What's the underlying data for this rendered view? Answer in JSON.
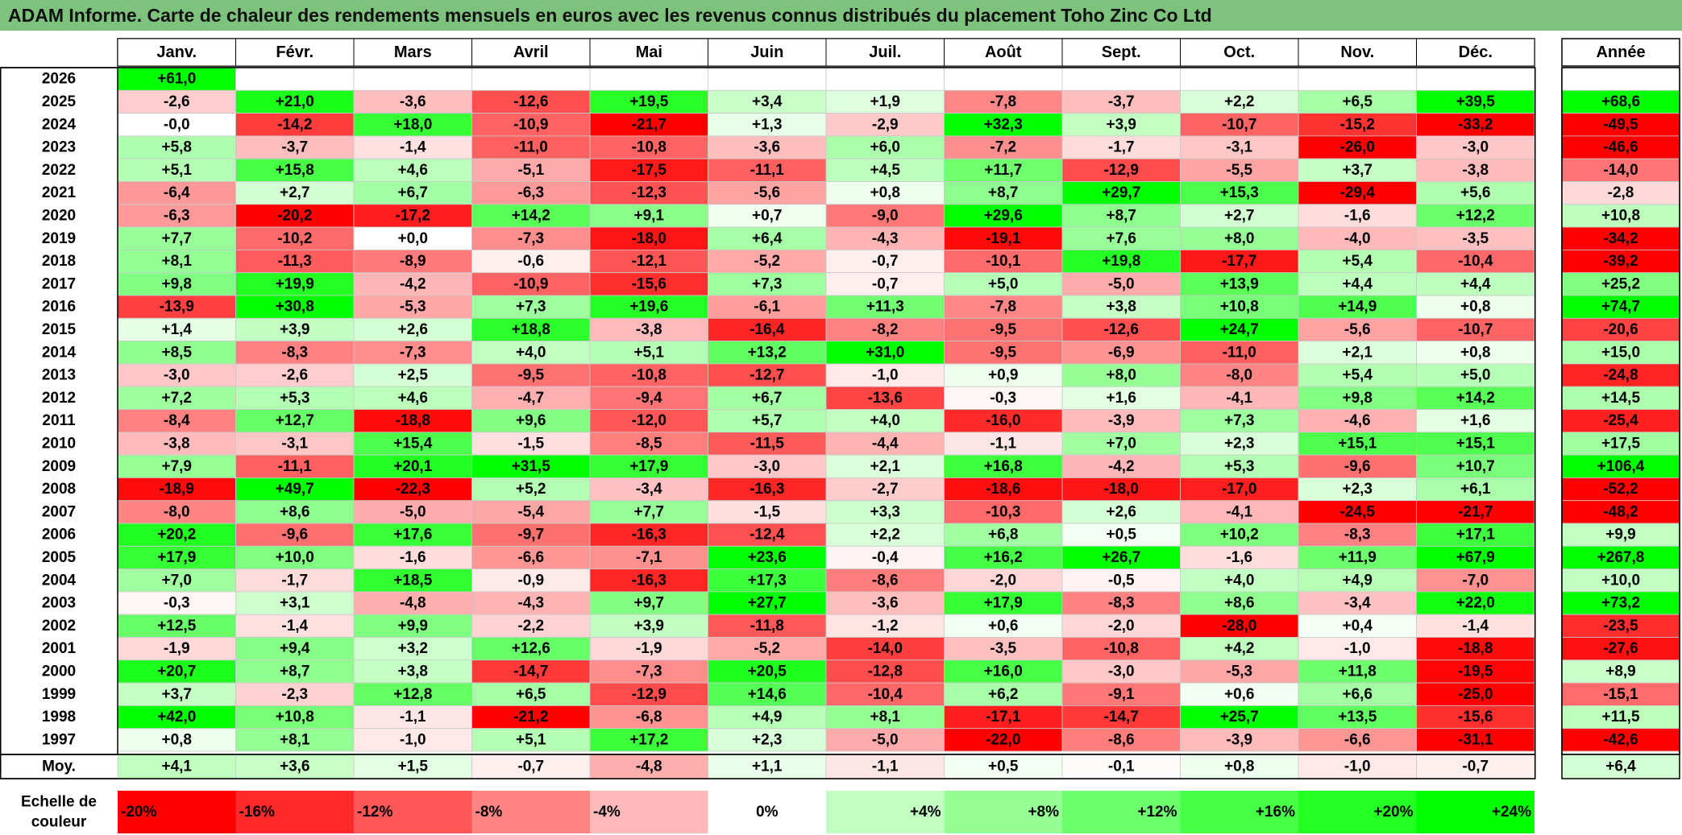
{
  "title": "ADAM Informe. Carte de chaleur des rendements mensuels en euros avec les revenus connus distribués du placement Toho Zinc Co Ltd",
  "chart_data": {
    "type": "heatmap",
    "months": [
      "Janv.",
      "Févr.",
      "Mars",
      "Avril",
      "Mai",
      "Juin",
      "Juil.",
      "Août",
      "Sept.",
      "Oct.",
      "Nov.",
      "Déc."
    ],
    "year_header": "Année",
    "rows": [
      {
        "year": "2026",
        "values": [
          "+61,0",
          null,
          null,
          null,
          null,
          null,
          null,
          null,
          null,
          null,
          null,
          null
        ],
        "total": null
      },
      {
        "year": "2025",
        "values": [
          "-2,6",
          "+21,0",
          "-3,6",
          "-12,6",
          "+19,5",
          "+3,4",
          "+1,9",
          "-7,8",
          "-3,7",
          "+2,2",
          "+6,5",
          "+39,5"
        ],
        "total": "+68,6"
      },
      {
        "year": "2024",
        "values": [
          "-0,0",
          "-14,2",
          "+18,0",
          "-10,9",
          "-21,7",
          "+1,3",
          "-2,9",
          "+32,3",
          "+3,9",
          "-10,7",
          "-15,2",
          "-33,2"
        ],
        "total": "-49,5"
      },
      {
        "year": "2023",
        "values": [
          "+5,8",
          "-3,7",
          "-1,4",
          "-11,0",
          "-10,8",
          "-3,6",
          "+6,0",
          "-7,2",
          "-1,7",
          "-3,1",
          "-26,0",
          "-3,0"
        ],
        "total": "-46,6"
      },
      {
        "year": "2022",
        "values": [
          "+5,1",
          "+15,8",
          "+4,6",
          "-5,1",
          "-17,5",
          "-11,1",
          "+4,5",
          "+11,7",
          "-12,9",
          "-5,5",
          "+3,7",
          "-3,8"
        ],
        "total": "-14,0"
      },
      {
        "year": "2021",
        "values": [
          "-6,4",
          "+2,7",
          "+6,7",
          "-6,3",
          "-12,3",
          "-5,6",
          "+0,8",
          "+8,7",
          "+29,7",
          "+15,3",
          "-29,4",
          "+5,6"
        ],
        "total": "-2,8"
      },
      {
        "year": "2020",
        "values": [
          "-6,3",
          "-20,2",
          "-17,2",
          "+14,2",
          "+9,1",
          "+0,7",
          "-9,0",
          "+29,6",
          "+8,7",
          "+2,7",
          "-1,6",
          "+12,2"
        ],
        "total": "+10,8"
      },
      {
        "year": "2019",
        "values": [
          "+7,7",
          "-10,2",
          "+0,0",
          "-7,3",
          "-18,0",
          "+6,4",
          "-4,3",
          "-19,1",
          "+7,6",
          "+8,0",
          "-4,0",
          "-3,5"
        ],
        "total": "-34,2"
      },
      {
        "year": "2018",
        "values": [
          "+8,1",
          "-11,3",
          "-8,9",
          "-0,6",
          "-12,1",
          "-5,2",
          "-0,7",
          "-10,1",
          "+19,8",
          "-17,7",
          "+5,4",
          "-10,4"
        ],
        "total": "-39,2"
      },
      {
        "year": "2017",
        "values": [
          "+9,8",
          "+19,9",
          "-4,2",
          "-10,9",
          "-15,6",
          "+7,3",
          "-0,7",
          "+5,0",
          "-5,0",
          "+13,9",
          "+4,4",
          "+4,4"
        ],
        "total": "+25,2"
      },
      {
        "year": "2016",
        "values": [
          "-13,9",
          "+30,8",
          "-5,3",
          "+7,3",
          "+19,6",
          "-6,1",
          "+11,3",
          "-7,8",
          "+3,8",
          "+10,8",
          "+14,9",
          "+0,8"
        ],
        "total": "+74,7"
      },
      {
        "year": "2015",
        "values": [
          "+1,4",
          "+3,9",
          "+2,6",
          "+18,8",
          "-3,8",
          "-16,4",
          "-8,2",
          "-9,5",
          "-12,6",
          "+24,7",
          "-5,6",
          "-10,7"
        ],
        "total": "-20,6"
      },
      {
        "year": "2014",
        "values": [
          "+8,5",
          "-8,3",
          "-7,3",
          "+4,0",
          "+5,1",
          "+13,2",
          "+31,0",
          "-9,5",
          "-6,9",
          "-11,0",
          "+2,1",
          "+0,8"
        ],
        "total": "+15,0"
      },
      {
        "year": "2013",
        "values": [
          "-3,0",
          "-2,6",
          "+2,5",
          "-9,5",
          "-10,8",
          "-12,7",
          "-1,0",
          "+0,9",
          "+8,0",
          "-8,0",
          "+5,4",
          "+5,0"
        ],
        "total": "-24,8"
      },
      {
        "year": "2012",
        "values": [
          "+7,2",
          "+5,3",
          "+4,6",
          "-4,7",
          "-9,4",
          "+6,7",
          "-13,6",
          "-0,3",
          "+1,6",
          "-4,1",
          "+9,8",
          "+14,2"
        ],
        "total": "+14,5"
      },
      {
        "year": "2011",
        "values": [
          "-8,4",
          "+12,7",
          "-18,8",
          "+9,6",
          "-12,0",
          "+5,7",
          "+4,0",
          "-16,0",
          "-3,9",
          "+7,3",
          "-4,6",
          "+1,6"
        ],
        "total": "-25,4"
      },
      {
        "year": "2010",
        "values": [
          "-3,8",
          "-3,1",
          "+15,4",
          "-1,5",
          "-8,5",
          "-11,5",
          "-4,4",
          "-1,1",
          "+7,0",
          "+2,3",
          "+15,1",
          "+15,1"
        ],
        "total": "+17,5"
      },
      {
        "year": "2009",
        "values": [
          "+7,9",
          "-11,1",
          "+20,1",
          "+31,5",
          "+17,9",
          "-3,0",
          "+2,1",
          "+16,8",
          "-4,2",
          "+5,3",
          "-9,6",
          "+10,7"
        ],
        "total": "+106,4"
      },
      {
        "year": "2008",
        "values": [
          "-18,9",
          "+49,7",
          "-22,3",
          "+5,2",
          "-3,4",
          "-16,3",
          "-2,7",
          "-18,6",
          "-18,0",
          "-17,0",
          "+2,3",
          "+6,1"
        ],
        "total": "-52,2"
      },
      {
        "year": "2007",
        "values": [
          "-8,0",
          "+8,6",
          "-5,0",
          "-5,4",
          "+7,7",
          "-1,5",
          "+3,3",
          "-10,3",
          "+2,6",
          "-4,1",
          "-24,5",
          "-21,7"
        ],
        "total": "-48,2"
      },
      {
        "year": "2006",
        "values": [
          "+20,2",
          "-9,6",
          "+17,6",
          "-9,7",
          "-16,3",
          "-12,4",
          "+2,2",
          "+6,8",
          "+0,5",
          "+10,2",
          "-8,3",
          "+17,1"
        ],
        "total": "+9,9"
      },
      {
        "year": "2005",
        "values": [
          "+17,9",
          "+10,0",
          "-1,6",
          "-6,6",
          "-7,1",
          "+23,6",
          "-0,4",
          "+16,2",
          "+26,7",
          "-1,6",
          "+11,9",
          "+67,9"
        ],
        "total": "+267,8"
      },
      {
        "year": "2004",
        "values": [
          "+7,0",
          "-1,7",
          "+18,5",
          "-0,9",
          "-16,3",
          "+17,3",
          "-8,6",
          "-2,0",
          "-0,5",
          "+4,0",
          "+4,9",
          "-7,0"
        ],
        "total": "+10,0"
      },
      {
        "year": "2003",
        "values": [
          "-0,3",
          "+3,1",
          "-4,8",
          "-4,3",
          "+9,7",
          "+27,7",
          "-3,6",
          "+17,9",
          "-8,3",
          "+8,6",
          "-3,4",
          "+22,0"
        ],
        "total": "+73,2"
      },
      {
        "year": "2002",
        "values": [
          "+12,5",
          "-1,4",
          "+9,9",
          "-2,2",
          "+3,9",
          "-11,8",
          "-1,2",
          "+0,6",
          "-2,0",
          "-28,0",
          "+0,4",
          "-1,4"
        ],
        "total": "-23,5"
      },
      {
        "year": "2001",
        "values": [
          "-1,9",
          "+9,4",
          "+3,2",
          "+12,6",
          "-1,9",
          "-5,2",
          "-14,0",
          "-3,5",
          "-10,8",
          "+4,2",
          "-1,0",
          "-18,8"
        ],
        "total": "-27,6"
      },
      {
        "year": "2000",
        "values": [
          "+20,7",
          "+8,7",
          "+3,8",
          "-14,7",
          "-7,3",
          "+20,5",
          "-12,8",
          "+16,0",
          "-3,0",
          "-5,3",
          "+11,8",
          "-19,5"
        ],
        "total": "+8,9"
      },
      {
        "year": "1999",
        "values": [
          "+3,7",
          "-2,3",
          "+12,8",
          "+6,5",
          "-12,9",
          "+14,6",
          "-10,4",
          "+6,2",
          "-9,1",
          "+0,6",
          "+6,6",
          "-25,0"
        ],
        "total": "-15,1"
      },
      {
        "year": "1998",
        "values": [
          "+42,0",
          "+10,8",
          "-1,1",
          "-21,2",
          "-6,8",
          "+4,9",
          "+8,1",
          "-17,1",
          "-14,7",
          "+25,7",
          "+13,5",
          "-15,6"
        ],
        "total": "+11,5"
      },
      {
        "year": "1997",
        "values": [
          "+0,8",
          "+8,1",
          "-1,0",
          "+5,1",
          "+17,2",
          "+2,3",
          "-5,0",
          "-22,0",
          "-8,6",
          "-3,9",
          "-6,6",
          "-31,1"
        ],
        "total": "-42,6"
      }
    ],
    "average": {
      "label": "Moy.",
      "values": [
        "+4,1",
        "+3,6",
        "+1,5",
        "-0,7",
        "-4,8",
        "+1,1",
        "-1,1",
        "+0,5",
        "-0,1",
        "+0,8",
        "-1,0",
        "-0,7"
      ],
      "total": "+6,4"
    },
    "scale": {
      "label_lines": [
        "Echelle de",
        "couleur"
      ],
      "steps": [
        "-20%",
        "-16%",
        "-12%",
        "-8%",
        "-4%",
        "0%",
        "+4%",
        "+8%",
        "+12%",
        "+16%",
        "+20%",
        "+24%"
      ]
    },
    "colors": {
      "title_bar": "#7dc27d",
      "negative_max": "#ff0000",
      "neutral": "#ffffff",
      "positive_max": "#00ff00"
    }
  }
}
